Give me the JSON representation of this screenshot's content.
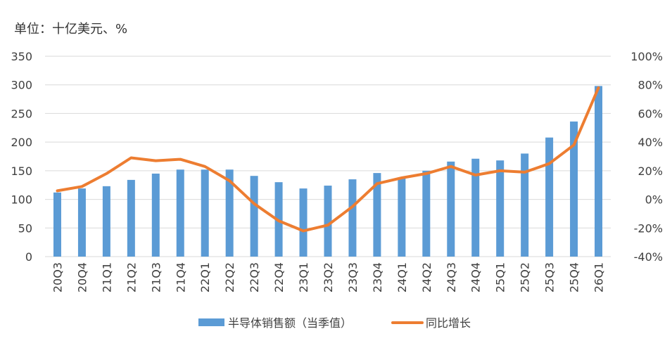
{
  "unit_label": "单位：十亿美元、%",
  "chart_data": {
    "type": "bar",
    "categories": [
      "20Q3",
      "20Q4",
      "21Q1",
      "21Q2",
      "21Q3",
      "21Q4",
      "22Q1",
      "22Q2",
      "22Q3",
      "22Q4",
      "23Q1",
      "23Q2",
      "23Q3",
      "23Q4",
      "24Q1",
      "24Q2",
      "24Q3",
      "24Q4",
      "25Q1",
      "25Q2",
      "25Q3",
      "25Q4",
      "26Q1"
    ],
    "series": [
      {
        "name": "半导体销售额（当季值）",
        "type": "bar",
        "axis": "left",
        "color": "#5b9bd5",
        "values": [
          112,
          119,
          123,
          134,
          145,
          152,
          152,
          152,
          141,
          130,
          119,
          124,
          135,
          146,
          138,
          150,
          166,
          171,
          168,
          180,
          208,
          236,
          298
        ]
      },
      {
        "name": "同比增长",
        "type": "line",
        "axis": "right",
        "color": "#ed7d31",
        "values": [
          6,
          9,
          18,
          29,
          27,
          28,
          23,
          13,
          -3,
          -15,
          -22,
          -18,
          -5,
          11,
          15,
          18,
          23,
          17,
          20,
          19,
          25,
          38,
          78
        ]
      }
    ],
    "y_left": {
      "min": 0,
      "max": 350,
      "ticks": [
        0,
        50,
        100,
        150,
        200,
        250,
        300,
        350
      ]
    },
    "y_right": {
      "min": -40,
      "max": 100,
      "ticks": [
        -40,
        -20,
        0,
        20,
        40,
        60,
        80,
        100
      ],
      "suffix": "%"
    },
    "grid": true,
    "legend_position": "bottom"
  }
}
